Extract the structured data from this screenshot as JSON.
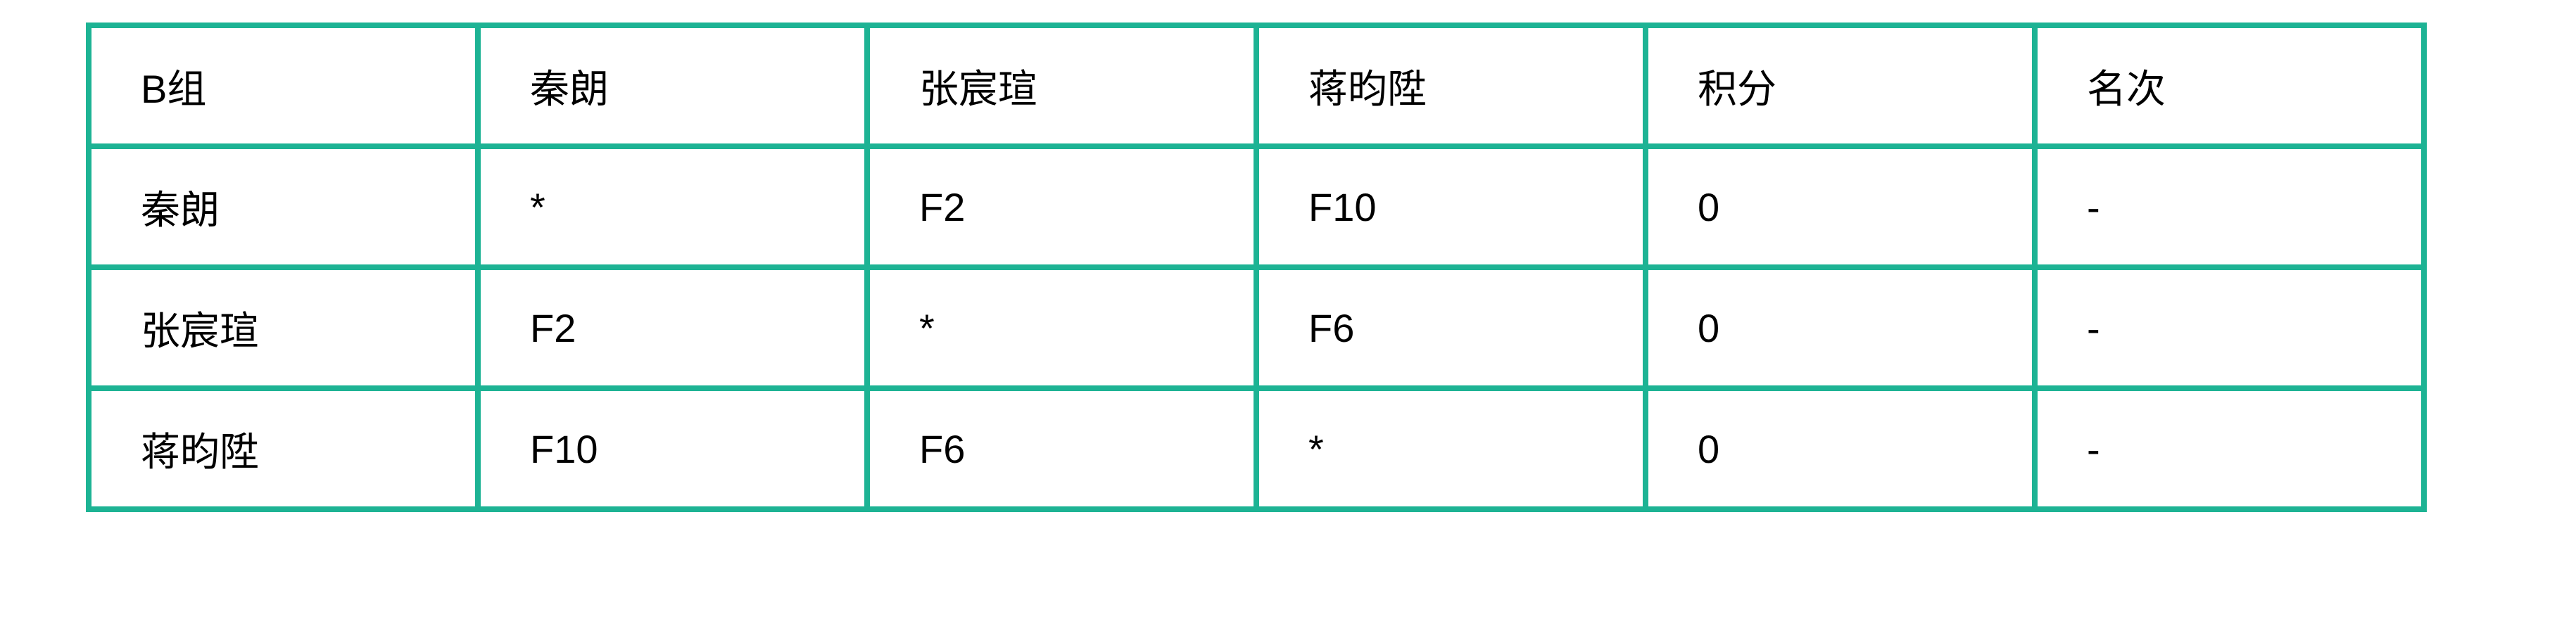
{
  "table": {
    "header": [
      "B组",
      "秦朗",
      "张宸瑄",
      "蒋昀陞",
      "积分",
      "名次"
    ],
    "rows": [
      [
        "秦朗",
        "*",
        "F2",
        "F10",
        "0",
        "-"
      ],
      [
        "张宸瑄",
        "F2",
        "*",
        "F6",
        "0",
        "-"
      ],
      [
        "蒋昀陞",
        "F10",
        "F6",
        "*",
        "0",
        "-"
      ]
    ]
  },
  "colors": {
    "border": "#1db394",
    "text": "#000000"
  }
}
